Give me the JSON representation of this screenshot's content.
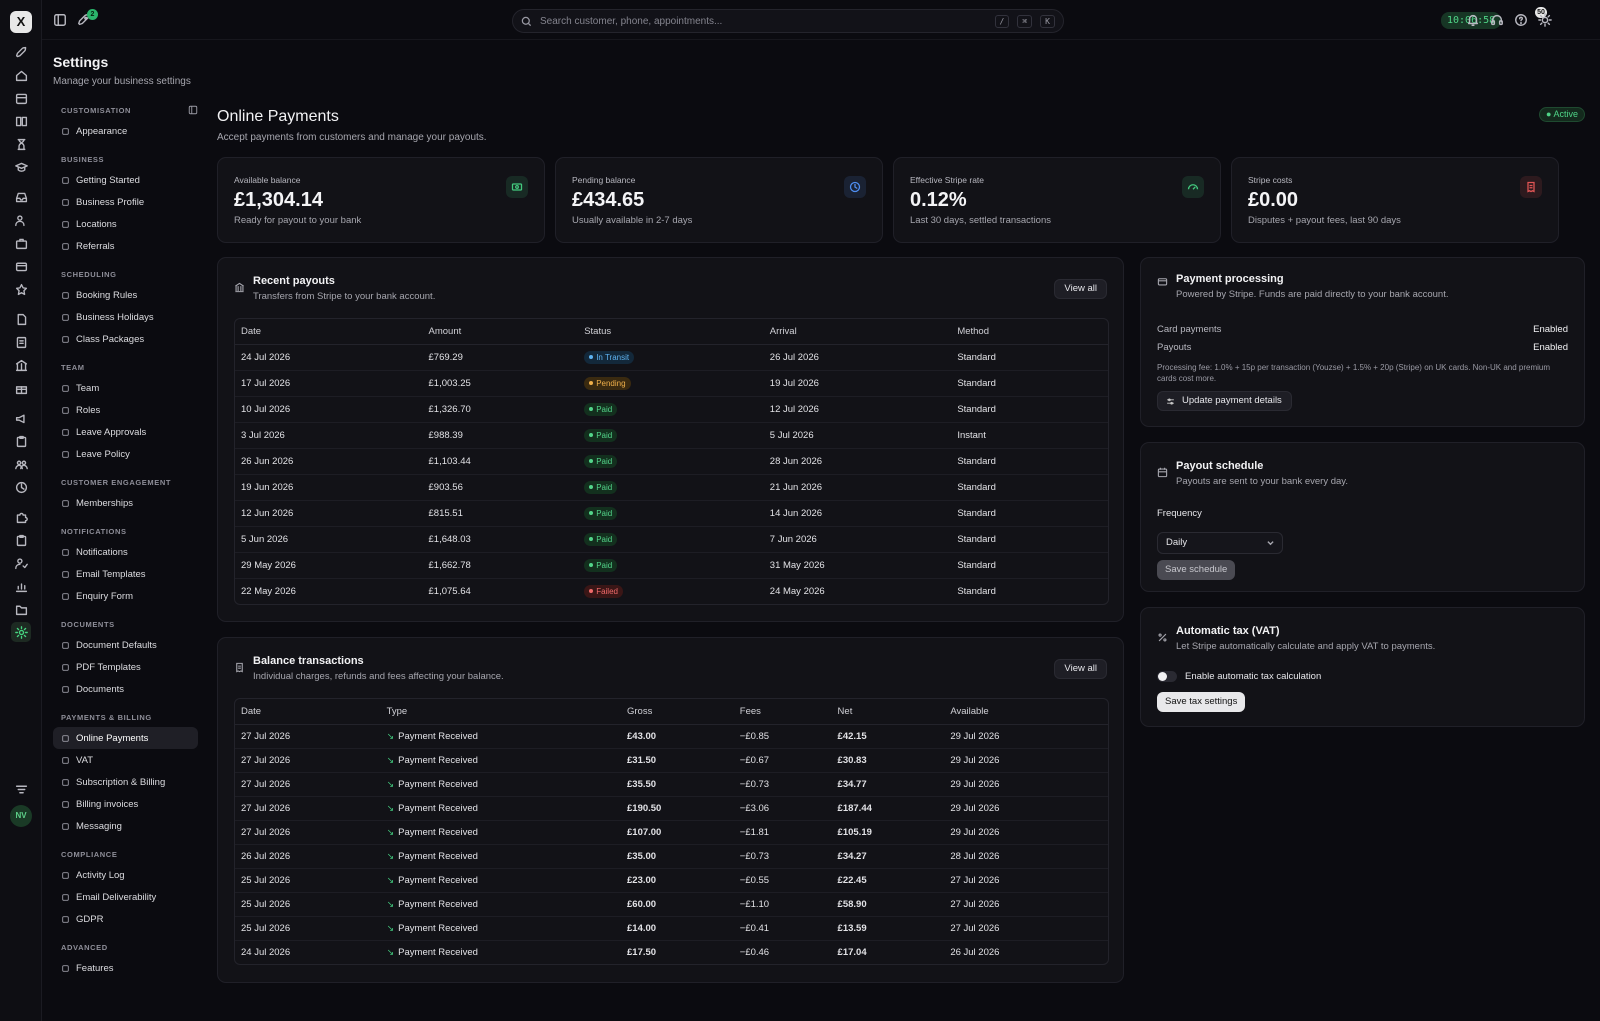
{
  "topbar": {
    "search_placeholder": "Search customer, phone, appointments...",
    "shortcut_keys": [
      "/",
      "⌘",
      "K"
    ],
    "clock": "10:06:58",
    "notification_count": "50",
    "launch_badge": "2"
  },
  "rail": {
    "logo": "X",
    "avatar": "NV"
  },
  "page": {
    "title": "Settings",
    "subtitle": "Manage your business settings"
  },
  "sidebar": [
    {
      "section": "Customisation",
      "items": [
        "Appearance"
      ]
    },
    {
      "section": "Business",
      "items": [
        "Getting Started",
        "Business Profile",
        "Locations",
        "Referrals"
      ]
    },
    {
      "section": "Scheduling",
      "items": [
        "Booking Rules",
        "Business Holidays",
        "Class Packages"
      ]
    },
    {
      "section": "Team",
      "items": [
        "Team",
        "Roles",
        "Leave Approvals",
        "Leave Policy"
      ]
    },
    {
      "section": "Customer Engagement",
      "items": [
        "Memberships"
      ]
    },
    {
      "section": "Notifications",
      "items": [
        "Notifications",
        "Email Templates",
        "Enquiry Form"
      ]
    },
    {
      "section": "Documents",
      "items": [
        "Document Defaults",
        "PDF Templates",
        "Documents"
      ]
    },
    {
      "section": "Payments & Billing",
      "items": [
        "Online Payments",
        "VAT",
        "Subscription & Billing",
        "Billing invoices",
        "Messaging"
      ]
    },
    {
      "section": "Compliance",
      "items": [
        "Activity Log",
        "Email Deliverability",
        "GDPR"
      ]
    },
    {
      "section": "Advanced",
      "items": [
        "Features"
      ]
    }
  ],
  "sidebar_active": "Online Payments",
  "main": {
    "title": "Online Payments",
    "subtitle": "Accept payments from customers and manage your payouts.",
    "status": "Active"
  },
  "stats": [
    {
      "label": "Available balance",
      "value": "£1,304.14",
      "sub": "Ready for payout to your bank",
      "icon": "cash-icon",
      "color": "#43c97e"
    },
    {
      "label": "Pending balance",
      "value": "£434.65",
      "sub": "Usually available in 2-7 days",
      "icon": "clock-icon",
      "color": "#4f8ef0"
    },
    {
      "label": "Effective Stripe rate",
      "value": "0.12%",
      "sub": "Last 30 days, settled transactions",
      "icon": "gauge-icon",
      "color": "#43c97e"
    },
    {
      "label": "Stripe costs",
      "value": "£0.00",
      "sub": "Disputes + payout fees, last 90 days",
      "icon": "receipt-icon",
      "color": "#e05555"
    }
  ],
  "payouts": {
    "title": "Recent payouts",
    "desc": "Transfers from Stripe to your bank account.",
    "view_all": "View all",
    "columns": [
      "Date",
      "Amount",
      "Status",
      "Arrival",
      "Method"
    ],
    "rows": [
      [
        "24 Jul 2026",
        "£769.29",
        "In Transit",
        "26 Jul 2026",
        "Standard"
      ],
      [
        "17 Jul 2026",
        "£1,003.25",
        "Pending",
        "19 Jul 2026",
        "Standard"
      ],
      [
        "10 Jul 2026",
        "£1,326.70",
        "Paid",
        "12 Jul 2026",
        "Standard"
      ],
      [
        "3 Jul 2026",
        "£988.39",
        "Paid",
        "5 Jul 2026",
        "Instant"
      ],
      [
        "26 Jun 2026",
        "£1,103.44",
        "Paid",
        "28 Jun 2026",
        "Standard"
      ],
      [
        "19 Jun 2026",
        "£903.56",
        "Paid",
        "21 Jun 2026",
        "Standard"
      ],
      [
        "12 Jun 2026",
        "£815.51",
        "Paid",
        "14 Jun 2026",
        "Standard"
      ],
      [
        "5 Jun 2026",
        "£1,648.03",
        "Paid",
        "7 Jun 2026",
        "Standard"
      ],
      [
        "29 May 2026",
        "£1,662.78",
        "Paid",
        "31 May 2026",
        "Standard"
      ],
      [
        "22 May 2026",
        "£1,075.64",
        "Failed",
        "24 May 2026",
        "Standard"
      ]
    ]
  },
  "transactions": {
    "title": "Balance transactions",
    "desc": "Individual charges, refunds and fees affecting your balance.",
    "view_all": "View all",
    "columns": [
      "Date",
      "Type",
      "Gross",
      "Fees",
      "Net",
      "Available"
    ],
    "rows": [
      [
        "27 Jul 2026",
        "Payment Received",
        "£43.00",
        "−£0.85",
        "£42.15",
        "29 Jul 2026"
      ],
      [
        "27 Jul 2026",
        "Payment Received",
        "£31.50",
        "−£0.67",
        "£30.83",
        "29 Jul 2026"
      ],
      [
        "27 Jul 2026",
        "Payment Received",
        "£35.50",
        "−£0.73",
        "£34.77",
        "29 Jul 2026"
      ],
      [
        "27 Jul 2026",
        "Payment Received",
        "£190.50",
        "−£3.06",
        "£187.44",
        "29 Jul 2026"
      ],
      [
        "27 Jul 2026",
        "Payment Received",
        "£107.00",
        "−£1.81",
        "£105.19",
        "29 Jul 2026"
      ],
      [
        "26 Jul 2026",
        "Payment Received",
        "£35.00",
        "−£0.73",
        "£34.27",
        "28 Jul 2026"
      ],
      [
        "25 Jul 2026",
        "Payment Received",
        "£23.00",
        "−£0.55",
        "£22.45",
        "27 Jul 2026"
      ],
      [
        "25 Jul 2026",
        "Payment Received",
        "£60.00",
        "−£1.10",
        "£58.90",
        "27 Jul 2026"
      ],
      [
        "25 Jul 2026",
        "Payment Received",
        "£14.00",
        "−£0.41",
        "£13.59",
        "27 Jul 2026"
      ],
      [
        "24 Jul 2026",
        "Payment Received",
        "£17.50",
        "−£0.46",
        "£17.04",
        "26 Jul 2026"
      ]
    ]
  },
  "processing": {
    "title": "Payment processing",
    "desc": "Powered by Stripe. Funds are paid directly to your bank account.",
    "card_label": "Card payments",
    "card_value": "Enabled",
    "payouts_label": "Payouts",
    "payouts_value": "Enabled",
    "note": "Processing fee: 1.0% + 15p per transaction (Youzse) + 1.5% + 20p (Stripe) on UK cards. Non-UK and premium cards cost more.",
    "button": "Update payment details"
  },
  "schedule": {
    "title": "Payout schedule",
    "desc": "Payouts are sent to your bank every day.",
    "frequency_label": "Frequency",
    "frequency_value": "Daily",
    "button": "Save schedule"
  },
  "tax": {
    "title": "Automatic tax (VAT)",
    "desc": "Let Stripe automatically calculate and apply VAT to payments.",
    "toggle_label": "Enable automatic tax calculation",
    "button": "Save tax settings"
  }
}
